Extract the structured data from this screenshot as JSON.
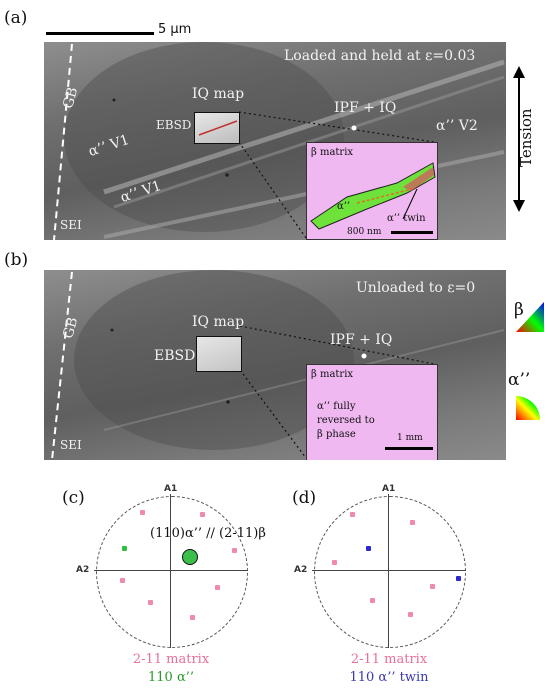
{
  "panel_a": {
    "label": "(a)",
    "scale_bar": "5 µm",
    "condition": "Loaded and held at ε=0.03",
    "gb": "GB",
    "iq_map": "IQ map",
    "ebsd": "EBSD",
    "ipf_iq": "IPF + IQ",
    "alpha_v1_a": "α’’ V1",
    "alpha_v1_b": "α’’ V1",
    "alpha_v2": "α’’ V2",
    "sei": "SEI",
    "tension": "Tension",
    "inset": {
      "beta_matrix": "β matrix",
      "alpha": "α’’",
      "twin": "α’’ twin",
      "scale": "800 nm"
    }
  },
  "panel_b": {
    "label": "(b)",
    "condition": "Unloaded to ε=0",
    "gb": "GB",
    "iq_map": "IQ map",
    "ebsd": "EBSD",
    "ipf_iq": "IPF + IQ",
    "sei": "SEI",
    "inset": {
      "beta_matrix": "β matrix",
      "note_line1": "α’’ fully",
      "note_line2": "reversed to",
      "note_line3": "β phase",
      "scale": "1 mm"
    },
    "legend_beta": "β",
    "legend_alpha": "α’’"
  },
  "panel_c": {
    "label": "(c)",
    "pole_top": "A1",
    "pole_left": "A2",
    "annotation": "(110)α’’ // (2-11)β",
    "legend_line1": "2-11 matrix",
    "legend_line2": "110 α’’"
  },
  "panel_d": {
    "label": "(d)",
    "pole_top": "A1",
    "pole_left": "A2",
    "legend_line1": "2-11 matrix",
    "legend_line2": "110 α’’ twin"
  },
  "colors": {
    "matrix_pink": "#f08aa8",
    "alpha_green": "#2fbf3a",
    "twin_blue": "#2a2ad0",
    "inset_pink": "#f0b8f0"
  }
}
